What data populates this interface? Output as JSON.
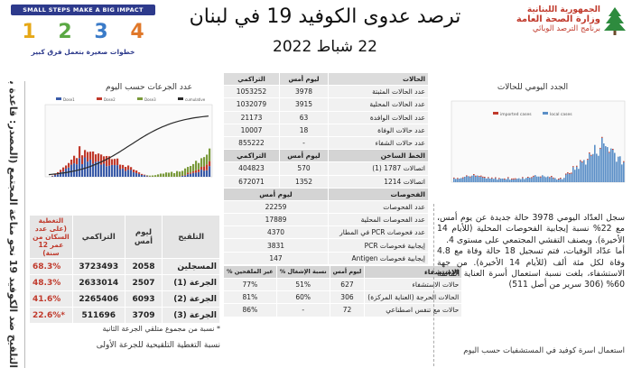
{
  "header": {
    "title": "ترصد عدوى الكوفيد 19 في لبنان",
    "date": "22 شباط 2022",
    "ministry_line1": "الجمهورية اللبنانية",
    "ministry_line2": "وزارة الصحة العامة",
    "ministry_line3": "برنامج الترصد الوبائي",
    "banner_title": "SMALL STEPS MAKE A BIG IMPACT",
    "banner_numbers": [
      "1",
      "2",
      "3",
      "4"
    ],
    "banner_subtitle": "خطوات صغيرة بتعمل فرق كبير",
    "colors": {
      "title_red": "#c0392b",
      "banner_blue": "#2d3a8c"
    }
  },
  "side_band": {
    "text": "التلقيح ضد الكوفيد 19 نحو مناعة المجتمع (المصدر: قاعدة بيانا"
  },
  "vaccination": {
    "chart_title": "عدد الجرعات حسب اليوم",
    "chart_data": {
      "type": "bar",
      "legend": [
        "Dose1",
        "Dose2",
        "Dose3",
        "cumulative"
      ],
      "colors": {
        "dose1": "#3a5ba8",
        "dose2": "#c0392b",
        "dose3": "#7a9a3a",
        "cumulative": "#2a2a2a"
      }
    },
    "headers": {
      "vaccine": "التلقيح",
      "yesterday": "ليوم أمس",
      "cumulative": "التراكمي",
      "coverage": "التغطية (على عدد السكان من عمر 12 سنة)"
    },
    "rows": [
      {
        "label": "المسجلين",
        "yesterday": "2058",
        "cumulative": "3723493",
        "coverage": "68.3%"
      },
      {
        "label": "الجرعة (1)",
        "yesterday": "2507",
        "cumulative": "2633014",
        "coverage": "48.3%"
      },
      {
        "label": "الجرعة (2)",
        "yesterday": "6093",
        "cumulative": "2265406",
        "coverage": "41.6%"
      },
      {
        "label": "الجرعة (3)",
        "yesterday": "3709",
        "cumulative": "511696",
        "coverage": "22.6%*"
      }
    ],
    "note1": "* نسبة من مجموع متلقي الجرعة الثانية",
    "note2": "نسبة التغطية التلقيحية للجرعة الأولى"
  },
  "cases_table": {
    "headers": {
      "metric": "الحالات",
      "yesterday": "ليوم أمس",
      "cumulative": "التراكمي"
    },
    "rows": [
      {
        "label": "عدد الحالات المثبتة",
        "yesterday": "3978",
        "cumulative": "1053252"
      },
      {
        "label": "عدد الحالات المحلية",
        "yesterday": "3915",
        "cumulative": "1032079"
      },
      {
        "label": "عدد الحالات الوافدة",
        "yesterday": "63",
        "cumulative": "21173"
      },
      {
        "label": "عدد حالات الوفاة",
        "yesterday": "18",
        "cumulative": "10007"
      },
      {
        "label": "عدد حالات الشفاء",
        "yesterday": "-",
        "cumulative": "855222"
      }
    ],
    "hotline": {
      "headers": {
        "metric": "الخط الساخن",
        "yesterday": "ليوم أمس",
        "cumulative": "التراكمي"
      },
      "rows": [
        {
          "label": "اتصالات 1787 (1)",
          "yesterday": "570",
          "cumulative": "404823"
        },
        {
          "label": "اتصالات 1214",
          "yesterday": "1352",
          "cumulative": "672071"
        }
      ]
    },
    "tests": {
      "headers": {
        "metric": "الفحوصات",
        "yesterday": "ليوم أمس"
      },
      "rows": [
        {
          "label": "عدد الفحوصات",
          "value": "22259"
        },
        {
          "label": "عدد الفحوصات المحلية",
          "value": "17889"
        },
        {
          "label": "عدد فحوصات PCR في المطار",
          "value": "4370"
        },
        {
          "label": "إيجابية فحوصات PCR",
          "value": "3831"
        },
        {
          "label": "إيجابية فحوصات Antigen",
          "value": "147"
        }
      ]
    },
    "hospital": {
      "headers": {
        "metric": "الاستشفاء",
        "yesterday": "ليوم أمس",
        "occupancy": "% نسبة الإشغال",
        "ratio": "% غير الملقحين"
      },
      "rows": [
        {
          "label": "حالات الاستشفاء",
          "yesterday": "627",
          "occupancy": "51%",
          "ratio": "77%"
        },
        {
          "label": "الحالات الحرجة (العناية المركزة)",
          "yesterday": "306",
          "occupancy": "60%",
          "ratio": "81%"
        },
        {
          "label": "حالات مع تنفس اصطناعي",
          "yesterday": "72",
          "occupancy": "-",
          "ratio": "86%"
        }
      ]
    }
  },
  "daily": {
    "chart_title": "الجدد اليومي للحالات",
    "chart_data": {
      "type": "bar",
      "legend": [
        "imported cases",
        "local cases"
      ],
      "colors": {
        "imported": "#c0392b",
        "local": "#5b8fc7"
      }
    },
    "summary_p1": "سجل العدّاد اليومي 3978 حالة جديدة عن يوم أمس، مع 22% نسبة إيجابية الفحوصات المحلية (للأيام 14 الأخيرة). ويصنف التفشي المجتمعي على مستوى 4.",
    "summary_p2": "أما عدّاد الوفيات، فتم تسجيل 18 حالة وفاة مع 4.8 وفاة لكل مئة ألف (للأيام 14 الأخيرة). من جهة الاستشفاء، بلغت نسبة استعمال أسرة العناية الفائقة 60% (306 سرير من أصل 511)",
    "footer": "استعمال اسرة كوفيد في المستشفيات حسب اليوم"
  }
}
